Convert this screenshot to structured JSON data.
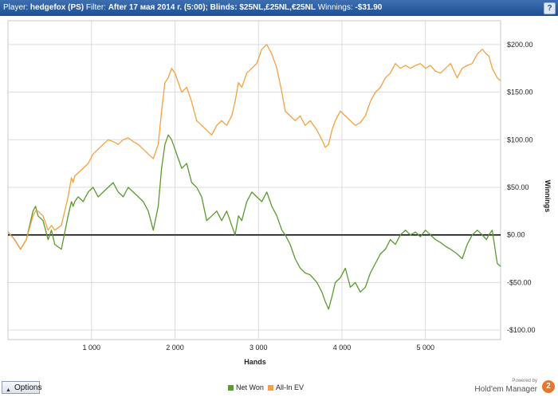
{
  "header": {
    "player_label": "Player:",
    "player_value": "hedgefox (PS)",
    "filter_label": "Filter:",
    "filter_value": "After 17 мая 2014 г. (5:00); Blinds: $25NL,£25NL,€25NL",
    "winnings_label": "Winnings:",
    "winnings_value": "-$31.90",
    "help": "?"
  },
  "footer": {
    "options_label": "Options",
    "powered_by": "Powered by",
    "brand": "Hold'em Manager",
    "brand_logo": "2"
  },
  "colors": {
    "net_won": "#5b9a2e",
    "all_in_ev": "#f5a040",
    "zero_line": "#000000",
    "grid": "#dcdcdc",
    "titlebar": "#1e4f94"
  },
  "chart_data": {
    "type": "line",
    "xlabel": "Hands",
    "ylabel": "Winnings",
    "xlim": [
      0,
      5900
    ],
    "ylim": [
      -110,
      225
    ],
    "x_ticks": [
      1000,
      2000,
      3000,
      4000,
      5000
    ],
    "x_tick_labels": [
      "1 000",
      "2 000",
      "3 000",
      "4 000",
      "5 000"
    ],
    "y_ticks": [
      200,
      150,
      100,
      50,
      0,
      -50,
      -100
    ],
    "y_tick_labels": [
      "$200.00",
      "$150.00",
      "$100.00",
      "$50.00",
      "$0.00",
      "-$50.00",
      "-$100.00"
    ],
    "grid": true,
    "legend_position": "bottom",
    "series": [
      {
        "name": "Net Won",
        "color": "#5b9a2e",
        "x": [
          0,
          80,
          150,
          220,
          300,
          330,
          360,
          420,
          480,
          520,
          560,
          640,
          720,
          760,
          780,
          800,
          840,
          900,
          960,
          1020,
          1080,
          1140,
          1200,
          1260,
          1320,
          1380,
          1440,
          1500,
          1560,
          1620,
          1680,
          1740,
          1800,
          1840,
          1880,
          1920,
          1960,
          2000,
          2040,
          2080,
          2140,
          2200,
          2260,
          2320,
          2380,
          2440,
          2500,
          2560,
          2620,
          2680,
          2720,
          2760,
          2800,
          2860,
          2920,
          2980,
          3040,
          3100,
          3160,
          3220,
          3280,
          3320,
          3380,
          3440,
          3500,
          3560,
          3620,
          3700,
          3760,
          3800,
          3840,
          3880,
          3920,
          3980,
          4040,
          4100,
          4160,
          4220,
          4280,
          4340,
          4400,
          4460,
          4520,
          4580,
          4640,
          4700,
          4760,
          4820,
          4880,
          4940,
          5000,
          5060,
          5120,
          5180,
          5240,
          5300,
          5380,
          5440,
          5500,
          5560,
          5620,
          5680,
          5730,
          5760,
          5800,
          5860,
          5900
        ],
        "y": [
          3,
          -5,
          -15,
          -5,
          25,
          30,
          20,
          15,
          -5,
          5,
          -10,
          -15,
          20,
          35,
          30,
          35,
          40,
          35,
          45,
          50,
          40,
          45,
          50,
          55,
          45,
          40,
          50,
          45,
          40,
          35,
          25,
          5,
          30,
          70,
          95,
          105,
          100,
          90,
          80,
          70,
          75,
          55,
          50,
          40,
          15,
          20,
          25,
          15,
          25,
          10,
          0,
          20,
          15,
          35,
          45,
          40,
          35,
          45,
          30,
          20,
          5,
          0,
          -10,
          -25,
          -35,
          -40,
          -42,
          -50,
          -60,
          -70,
          -78,
          -65,
          -50,
          -45,
          -35,
          -55,
          -50,
          -60,
          -55,
          -40,
          -30,
          -20,
          -15,
          -5,
          -10,
          0,
          5,
          0,
          3,
          -2,
          5,
          0,
          -5,
          -8,
          -12,
          -15,
          -20,
          -25,
          -10,
          0,
          5,
          0,
          -5,
          0,
          5,
          -30,
          -33
        ],
        "values_approximate": true
      },
      {
        "name": "All-In EV",
        "color": "#f5a040",
        "x": [
          0,
          80,
          150,
          220,
          300,
          330,
          360,
          420,
          480,
          520,
          560,
          640,
          720,
          760,
          780,
          800,
          840,
          900,
          960,
          1020,
          1080,
          1140,
          1200,
          1260,
          1320,
          1380,
          1440,
          1500,
          1560,
          1620,
          1680,
          1740,
          1800,
          1840,
          1880,
          1920,
          1960,
          2000,
          2040,
          2080,
          2140,
          2200,
          2260,
          2320,
          2380,
          2440,
          2500,
          2560,
          2620,
          2680,
          2720,
          2760,
          2800,
          2860,
          2920,
          2980,
          3040,
          3100,
          3160,
          3220,
          3280,
          3320,
          3380,
          3440,
          3500,
          3560,
          3620,
          3700,
          3760,
          3800,
          3840,
          3880,
          3920,
          3980,
          4040,
          4100,
          4160,
          4220,
          4280,
          4340,
          4400,
          4460,
          4520,
          4580,
          4640,
          4700,
          4760,
          4820,
          4880,
          4940,
          5000,
          5060,
          5120,
          5180,
          5240,
          5300,
          5380,
          5440,
          5500,
          5560,
          5620,
          5680,
          5730,
          5760,
          5800,
          5860,
          5900
        ],
        "y": [
          3,
          -5,
          -15,
          -5,
          20,
          25,
          25,
          20,
          5,
          10,
          5,
          10,
          40,
          60,
          55,
          62,
          65,
          70,
          75,
          85,
          90,
          95,
          100,
          98,
          95,
          100,
          102,
          98,
          95,
          90,
          85,
          80,
          95,
          130,
          160,
          165,
          175,
          170,
          160,
          150,
          155,
          140,
          120,
          115,
          110,
          105,
          115,
          120,
          115,
          125,
          140,
          160,
          155,
          170,
          175,
          180,
          195,
          200,
          190,
          175,
          150,
          130,
          125,
          120,
          125,
          115,
          120,
          110,
          100,
          92,
          95,
          110,
          120,
          130,
          125,
          120,
          115,
          118,
          125,
          140,
          150,
          155,
          165,
          170,
          180,
          175,
          178,
          175,
          178,
          180,
          175,
          178,
          172,
          170,
          175,
          180,
          165,
          175,
          178,
          180,
          190,
          195,
          190,
          188,
          175,
          165,
          162
        ],
        "values_approximate": true
      }
    ]
  }
}
